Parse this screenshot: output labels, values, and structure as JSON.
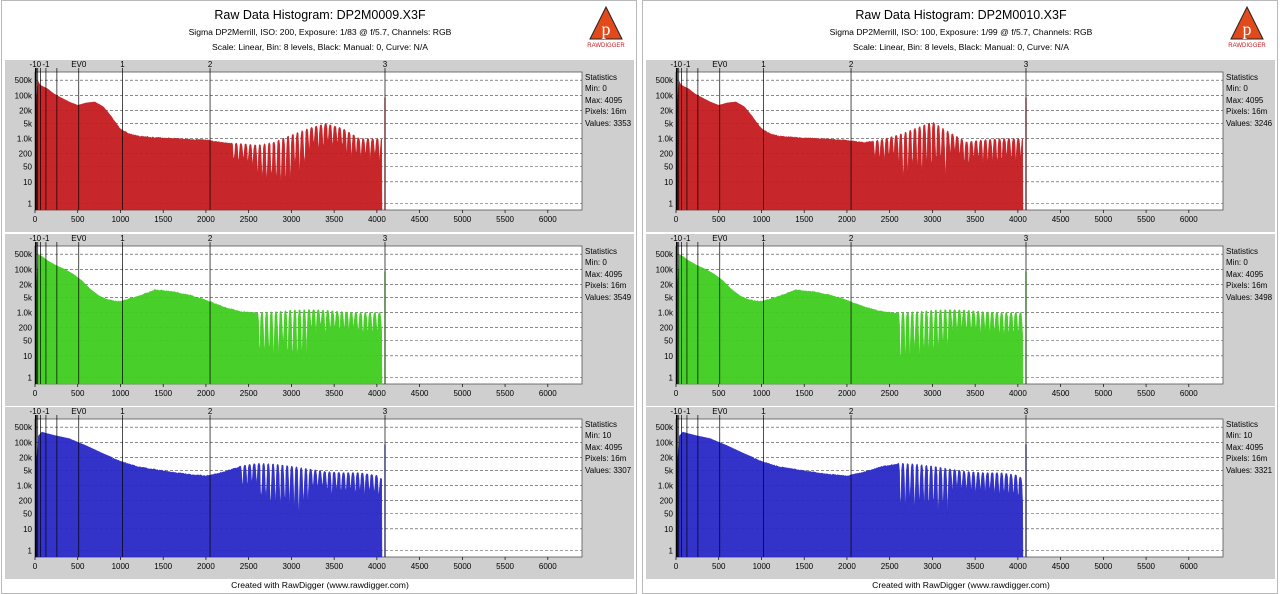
{
  "reports": [
    {
      "title": "Raw Data Histogram: DP2M0009.X3F",
      "subtitle1": "Sigma DP2Merrill, ISO: 200, Exposure: 1/83 @ f/5.7, Channels: RGB",
      "subtitle2": "Scale: Linear, Bin: 8 levels, Black: Manual: 0, Curve: N/A",
      "footer": "Created with RawDigger (www.rawdigger.com)",
      "logo_text": "RAWDIGGER",
      "logo_icon": "rawdigger-logo-icon",
      "panels": [
        {
          "channel": "red",
          "color": "#c41b1f",
          "stats_title": "Statistics",
          "min": "Min: 0",
          "max": "Max: 4095",
          "pixels": "Pixels: 16m",
          "values": "Values: 3353"
        },
        {
          "channel": "green",
          "color": "#3fcc1e",
          "stats_title": "Statistics",
          "min": "Min: 0",
          "max": "Max: 4095",
          "pixels": "Pixels: 16m",
          "values": "Values: 3549"
        },
        {
          "channel": "blue",
          "color": "#2828c6",
          "stats_title": "Statistics",
          "min": "Min: 10",
          "max": "Max: 4095",
          "pixels": "Pixels: 16m",
          "values": "Values: 3307"
        }
      ]
    },
    {
      "title": "Raw Data Histogram: DP2M0010.X3F",
      "subtitle1": "Sigma DP2Merrill, ISO: 100, Exposure: 1/99 @ f/5.7, Channels: RGB",
      "subtitle2": "Scale: Linear, Bin: 8 levels, Black: Manual: 0, Curve: N/A",
      "footer": "Created with RawDigger (www.rawdigger.com)",
      "logo_text": "RAWDIGGER",
      "logo_icon": "rawdigger-logo-icon",
      "panels": [
        {
          "channel": "red",
          "color": "#c41b1f",
          "stats_title": "Statistics",
          "min": "Min: 0",
          "max": "Max: 4095",
          "pixels": "Pixels: 16m",
          "values": "Values: 3246"
        },
        {
          "channel": "green",
          "color": "#3fcc1e",
          "stats_title": "Statistics",
          "min": "Min: 0",
          "max": "Max: 4095",
          "pixels": "Pixels: 16m",
          "values": "Values: 3498"
        },
        {
          "channel": "blue",
          "color": "#2828c6",
          "stats_title": "Statistics",
          "min": "Min: 10",
          "max": "Max: 4095",
          "pixels": "Pixels: 16m",
          "values": "Values: 3321"
        }
      ]
    }
  ],
  "chart_data": {
    "type": "area",
    "x_ticks": [
      0,
      500,
      1000,
      1500,
      2000,
      2500,
      3000,
      3500,
      4000,
      4500,
      5000,
      5500,
      6000
    ],
    "x_tick_labels": [
      "0",
      "500",
      "1000",
      "1500",
      "2000",
      "2500",
      "3000",
      "3500",
      "4000",
      "4500",
      "5000",
      "5500",
      "6000"
    ],
    "xlim": [
      0,
      6400
    ],
    "y_scale": "log",
    "y_ticks": [
      1,
      10,
      50,
      200,
      1000,
      5000,
      20000,
      100000,
      500000
    ],
    "y_tick_labels": [
      "1",
      "10",
      "50",
      "200",
      "1.0k",
      "5k",
      "20k",
      "100k",
      "500k"
    ],
    "ylim": [
      0.5,
      1200000
    ],
    "ev_marks": [
      {
        "label": "-10",
        "value": 4
      },
      {
        "label": "",
        "value": 8
      },
      {
        "label": "",
        "value": 16
      },
      {
        "label": "",
        "value": 32
      },
      {
        "label": "",
        "value": 64
      },
      {
        "label": "-1",
        "value": 128
      },
      {
        "label": "",
        "value": 256
      },
      {
        "label": "EV0",
        "value": 512
      },
      {
        "label": "1",
        "value": 1024
      },
      {
        "label": "2",
        "value": 2048
      },
      {
        "label": "3",
        "value": 4095
      }
    ],
    "histograms": [
      [
        {
          "name": "Red",
          "x": [
            8,
            30,
            60,
            100,
            150,
            220,
            300,
            400,
            500,
            600,
            700,
            800,
            900,
            1000,
            1100,
            1200,
            1400,
            1600,
            1800,
            2000,
            2200,
            2400,
            2600,
            2800,
            3000,
            3200,
            3400,
            3600,
            3800,
            4000,
            4060
          ],
          "y": [
            5000,
            500000,
            300000,
            250000,
            200000,
            120000,
            80000,
            50000,
            35000,
            45000,
            50000,
            30000,
            10000,
            3000,
            1800,
            1400,
            1200,
            1100,
            1000,
            900,
            700,
            600,
            500,
            700,
            1500,
            3000,
            5000,
            3000,
            1000,
            1000,
            1000
          ],
          "oscillation_start": 2300
        },
        {
          "name": "Green",
          "x": [
            8,
            40,
            80,
            150,
            250,
            350,
            450,
            550,
            650,
            750,
            850,
            1000,
            1200,
            1400,
            1600,
            1800,
            2000,
            2200,
            2400,
            2600,
            2800,
            3000,
            3200,
            3400,
            3600,
            3800,
            4000,
            4060
          ],
          "y": [
            5000,
            500000,
            400000,
            250000,
            150000,
            100000,
            60000,
            30000,
            12000,
            6000,
            4000,
            3500,
            6000,
            12000,
            10000,
            7000,
            4000,
            2000,
            1200,
            1000,
            1100,
            1300,
            1400,
            1300,
            1100,
            1000,
            1000,
            1000
          ],
          "oscillation_start": 2600
        },
        {
          "name": "Blue",
          "x": [
            8,
            40,
            80,
            150,
            250,
            400,
            600,
            800,
            1000,
            1200,
            1400,
            1600,
            1800,
            2000,
            2200,
            2400,
            2600,
            2800,
            3000,
            3200,
            3400,
            3600,
            3800,
            4000,
            4060
          ],
          "y": [
            5000,
            200000,
            300000,
            250000,
            200000,
            150000,
            70000,
            30000,
            14000,
            8000,
            6000,
            4500,
            3500,
            3000,
            4500,
            8000,
            11000,
            10000,
            8000,
            6000,
            4500,
            4000,
            4000,
            3000,
            2000
          ],
          "oscillation_start": 2400
        }
      ],
      [
        {
          "name": "Red",
          "x": [
            8,
            30,
            60,
            100,
            150,
            220,
            300,
            400,
            500,
            600,
            700,
            800,
            900,
            1000,
            1100,
            1200,
            1400,
            1600,
            1800,
            2000,
            2200,
            2400,
            2600,
            2800,
            3000,
            3200,
            3400,
            3600,
            3800,
            4000,
            4060
          ],
          "y": [
            5000,
            500000,
            300000,
            250000,
            200000,
            120000,
            80000,
            50000,
            35000,
            45000,
            50000,
            30000,
            10000,
            3000,
            1800,
            1400,
            1200,
            1100,
            1000,
            900,
            700,
            900,
            1500,
            3000,
            6000,
            2000,
            700,
            900,
            1000,
            1000,
            1000
          ],
          "oscillation_start": 2300
        },
        {
          "name": "Green",
          "x": [
            8,
            40,
            80,
            150,
            250,
            350,
            450,
            550,
            650,
            750,
            850,
            1000,
            1200,
            1400,
            1600,
            1800,
            2000,
            2200,
            2400,
            2600,
            2800,
            3000,
            3200,
            3400,
            3600,
            3800,
            4000,
            4060
          ],
          "y": [
            5000,
            500000,
            400000,
            250000,
            150000,
            100000,
            60000,
            30000,
            12000,
            6000,
            4000,
            3500,
            6000,
            12000,
            10000,
            7000,
            4000,
            2000,
            1200,
            1000,
            1100,
            1300,
            1400,
            1300,
            1100,
            1000,
            1000,
            1000
          ],
          "oscillation_start": 2600
        },
        {
          "name": "Blue",
          "x": [
            8,
            40,
            80,
            150,
            250,
            400,
            600,
            800,
            1000,
            1200,
            1400,
            1600,
            1800,
            2000,
            2200,
            2400,
            2600,
            2800,
            3000,
            3200,
            3400,
            3600,
            3800,
            4000,
            4060
          ],
          "y": [
            5000,
            200000,
            300000,
            250000,
            200000,
            150000,
            70000,
            30000,
            14000,
            8000,
            6000,
            4500,
            3500,
            3000,
            4500,
            8000,
            11000,
            10000,
            8000,
            6000,
            4500,
            4000,
            4000,
            3000,
            2000
          ],
          "oscillation_start": 2600
        }
      ]
    ]
  }
}
